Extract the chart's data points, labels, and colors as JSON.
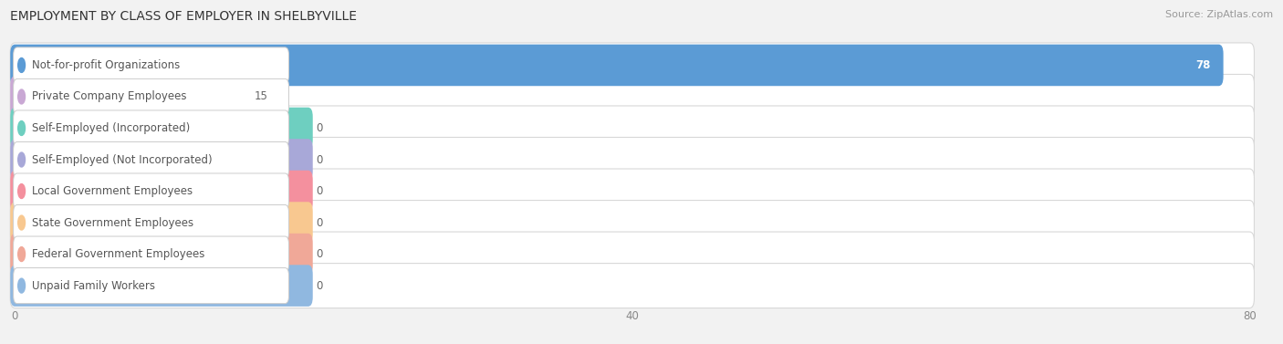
{
  "title": "EMPLOYMENT BY CLASS OF EMPLOYER IN SHELBYVILLE",
  "source": "Source: ZipAtlas.com",
  "categories": [
    "Not-for-profit Organizations",
    "Private Company Employees",
    "Self-Employed (Incorporated)",
    "Self-Employed (Not Incorporated)",
    "Local Government Employees",
    "State Government Employees",
    "Federal Government Employees",
    "Unpaid Family Workers"
  ],
  "values": [
    78,
    15,
    0,
    0,
    0,
    0,
    0,
    0
  ],
  "bar_colors": [
    "#5b9bd5",
    "#c9a8d4",
    "#6ecfc0",
    "#a8a8d8",
    "#f4909e",
    "#f8c890",
    "#f0a898",
    "#90b8e0"
  ],
  "xlim_max": 80,
  "xticks": [
    0,
    40,
    80
  ],
  "background_color": "#f2f2f2",
  "title_fontsize": 10,
  "source_fontsize": 8,
  "label_fontsize": 8.5,
  "value_fontsize": 8.5,
  "figsize": [
    14.06,
    3.77
  ],
  "dpi": 100
}
